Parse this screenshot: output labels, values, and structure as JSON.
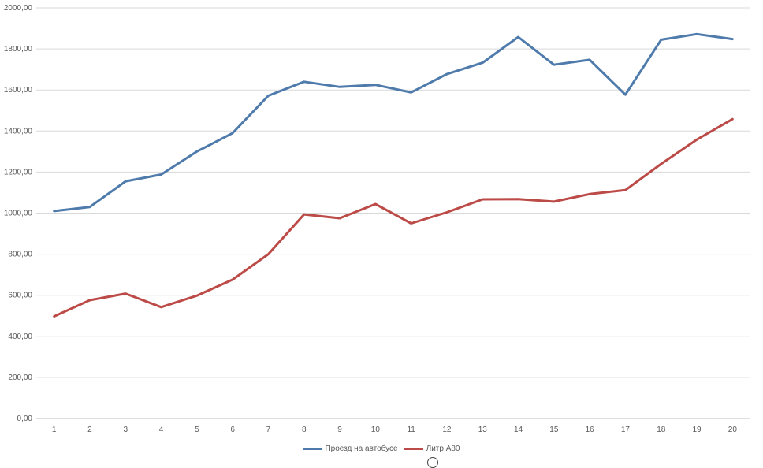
{
  "chart_data": {
    "type": "line",
    "categories": [
      "1",
      "2",
      "3",
      "4",
      "5",
      "6",
      "7",
      "8",
      "9",
      "10",
      "11",
      "12",
      "13",
      "14",
      "15",
      "16",
      "17",
      "18",
      "19",
      "20"
    ],
    "ylim": [
      0,
      2000
    ],
    "y_ticks": [
      "0,00",
      "200,00",
      "400,00",
      "600,00",
      "800,00",
      "1000,00",
      "1200,00",
      "1400,00",
      "1600,00",
      "1800,00",
      "2000,00"
    ],
    "grid": true,
    "legend_position": "bottom",
    "series": [
      {
        "name": "Проезд на автобусе",
        "color": "#4e7bab",
        "values": [
          1010,
          1030,
          1155,
          1188,
          1300,
          1390,
          1572,
          1640,
          1615,
          1625,
          1588,
          1677,
          1733,
          1858,
          1723,
          1747,
          1577,
          1845,
          1872,
          1848
        ]
      },
      {
        "name": "Литр А80",
        "color": "#bc4b48",
        "values": [
          497,
          576,
          608,
          542,
          598,
          676,
          800,
          994,
          975,
          1044,
          950,
          1004,
          1067,
          1068,
          1056,
          1093,
          1112,
          1240,
          1358,
          1458
        ]
      }
    ]
  }
}
